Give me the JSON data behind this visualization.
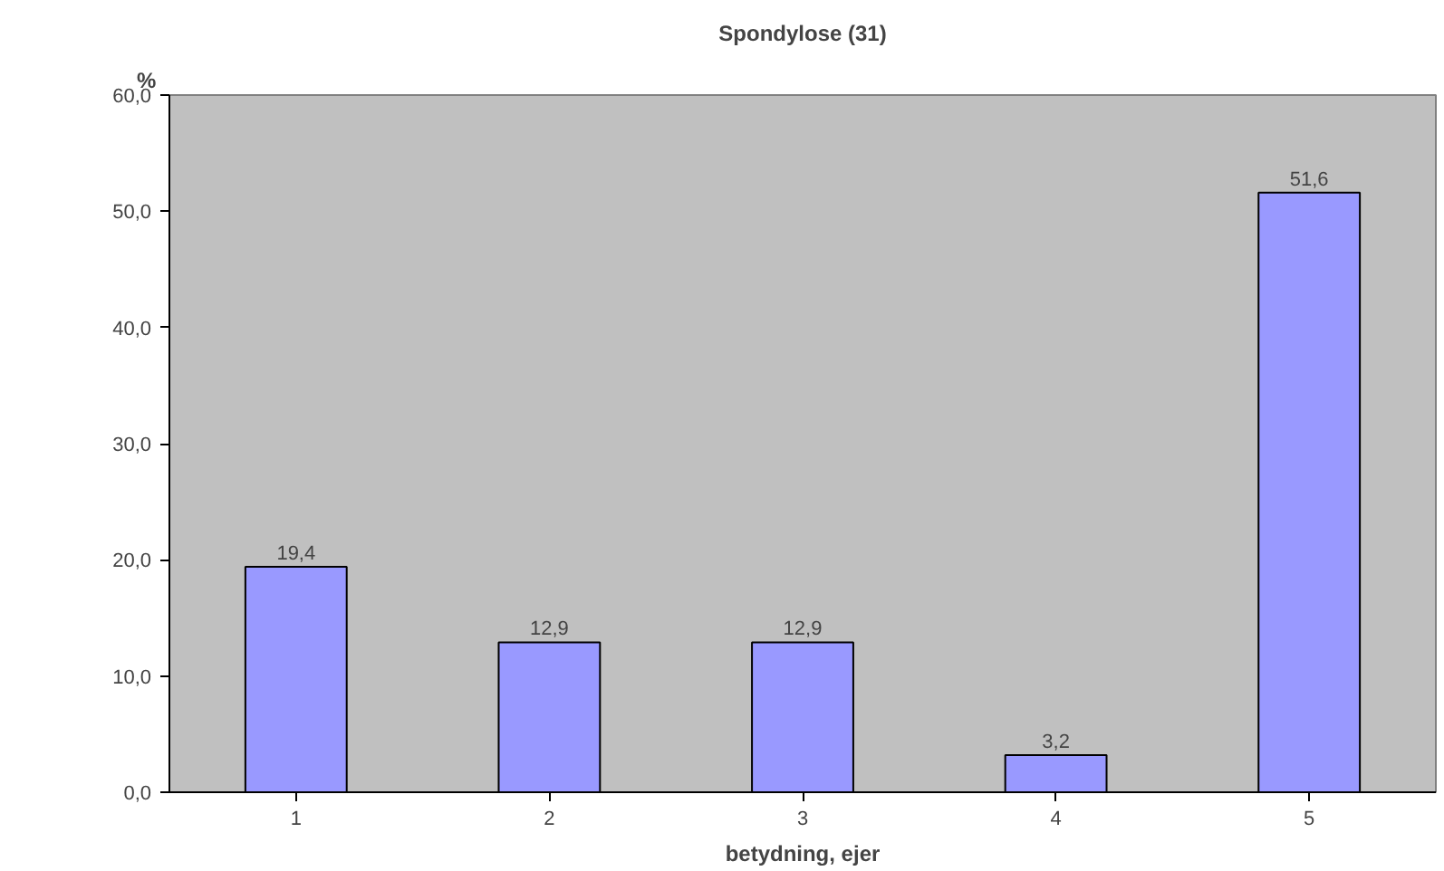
{
  "chart_data": {
    "type": "bar",
    "title": "Spondylose (31)",
    "xlabel": "betydning, ejer",
    "ylabel": "%",
    "categories": [
      "1",
      "2",
      "3",
      "4",
      "5"
    ],
    "values": [
      19.4,
      12.9,
      12.9,
      3.2,
      51.6
    ],
    "value_labels": [
      "19,4",
      "12,9",
      "12,9",
      "3,2",
      "51,6"
    ],
    "color": "#9999ff",
    "ylim": [
      0,
      60
    ],
    "yticks": [
      {
        "value": 0,
        "label": "0,0"
      },
      {
        "value": 10,
        "label": "10,0"
      },
      {
        "value": 20,
        "label": "20,0"
      },
      {
        "value": 30,
        "label": "30,0"
      },
      {
        "value": 40,
        "label": "40,0"
      },
      {
        "value": 50,
        "label": "50,0"
      },
      {
        "value": 60,
        "label": "60,0"
      }
    ],
    "grid": false
  }
}
